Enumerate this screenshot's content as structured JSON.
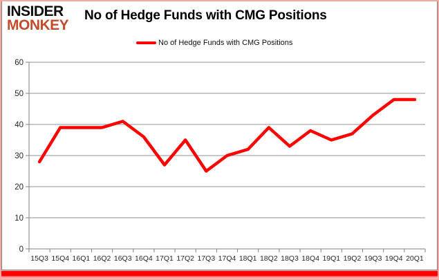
{
  "logo": {
    "line1": "INSIDER",
    "line2": "MONKEY"
  },
  "header": {
    "title": "No of Hedge Funds with CMG Positions"
  },
  "legend": {
    "label": "No of Hedge Funds with CMG Positions"
  },
  "chart_data": {
    "type": "line",
    "title": "No of Hedge Funds with CMG Positions",
    "categories": [
      "15Q3",
      "15Q4",
      "16Q1",
      "16Q2",
      "16Q3",
      "16Q4",
      "17Q1",
      "17Q2",
      "17Q3",
      "17Q4",
      "18Q1",
      "18Q2",
      "18Q3",
      "18Q4",
      "19Q1",
      "19Q2",
      "19Q3",
      "19Q4",
      "20Q1"
    ],
    "series": [
      {
        "name": "No of Hedge Funds with CMG Positions",
        "color": "#fe0000",
        "values": [
          28,
          39,
          39,
          39,
          41,
          36,
          27,
          35,
          25,
          30,
          32,
          39,
          33,
          38,
          35,
          37,
          43,
          48,
          48
        ]
      }
    ],
    "xlabel": "",
    "ylabel": "",
    "ylim": [
      0,
      60
    ],
    "yticks": [
      0,
      10,
      20,
      30,
      40,
      50,
      60
    ],
    "grid": "horizontal",
    "legend_position": "top-center"
  },
  "colors": {
    "series_red": "#fe0000",
    "logo_red": "#c54a2c",
    "gridline": "#909090",
    "axis_line": "#808080",
    "axis_text": "#262626",
    "frame_pink": "#f2a9a2",
    "card_border": "#808080",
    "bottom_bar": "#fe0202"
  }
}
